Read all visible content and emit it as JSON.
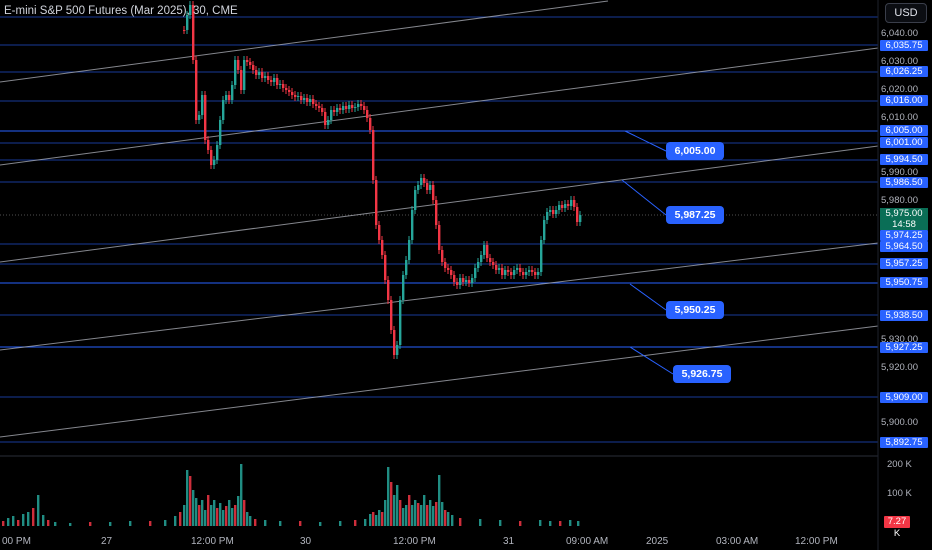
{
  "header": {
    "title": "E-mini S&P 500 Futures (Mar 2025), 30, CME"
  },
  "currency_button": "USD",
  "price_axis": {
    "labels": [
      "6,040.00",
      "6,030.00",
      "6,020.00",
      "6,010.00",
      "5,990.00",
      "5,980.00",
      "5,930.00",
      "5,920.00",
      "5,900.00"
    ],
    "level_badges": [
      "6,035.75",
      "6,026.25",
      "6,016.00",
      "6,005.00",
      "6,001.00",
      "5,994.50",
      "5,986.50",
      "5,974.25",
      "5,964.50",
      "5,957.25",
      "5,950.75",
      "5,938.50",
      "5,927.25",
      "5,909.00",
      "5,892.75"
    ],
    "current_price": "5,975.00",
    "countdown": "14:58"
  },
  "callouts": [
    "6,005.00",
    "5,987.25",
    "5,950.25",
    "5,926.75"
  ],
  "time_axis": [
    "00 PM",
    "27",
    "12:00 PM",
    "30",
    "12:00 PM",
    "31",
    "09:00 AM",
    "2025",
    "03:00 AM",
    "12:00 PM"
  ],
  "volume_axis": {
    "labels": [
      "200 K",
      "100 K"
    ],
    "current": "7.27 K"
  },
  "colors": {
    "up": "#26a69a",
    "down": "#f23645",
    "level_line": "#2962ff",
    "channel_line": "#b2b5be",
    "background": "#000000"
  }
}
